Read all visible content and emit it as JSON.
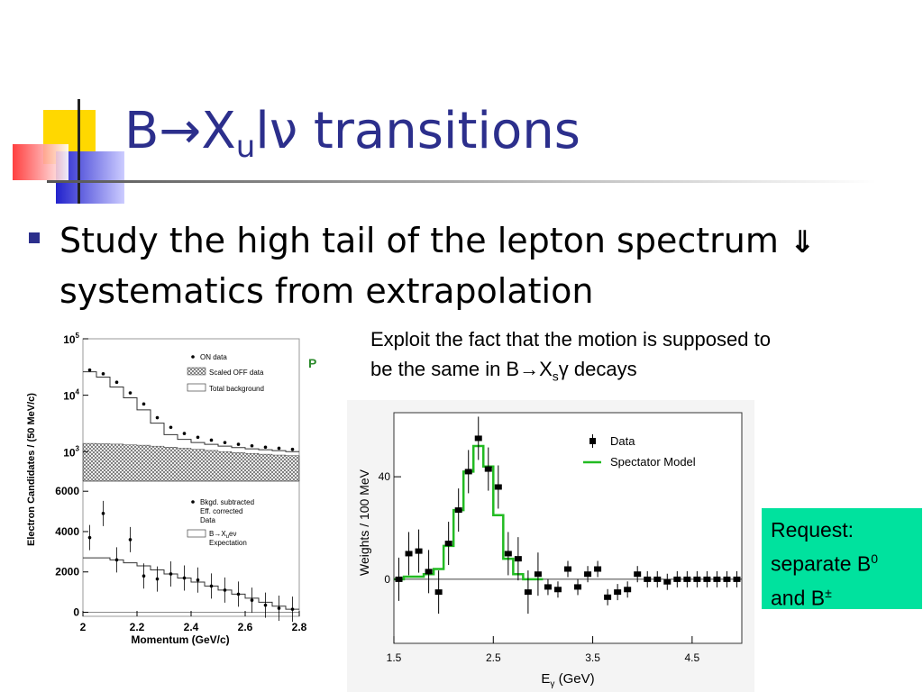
{
  "slide": {
    "title_prefix": "B",
    "title_arrow": "→",
    "title_x": "X",
    "title_sub": "u",
    "title_lnu": "lν",
    "title_suffix": " transitions",
    "bullet": {
      "line1": "Study the high tail of the lepton spectrum",
      "arrow": "⇓",
      "line2": "systematics from extrapolation"
    },
    "exploit": {
      "line1": "Exploit the fact that the motion is supposed to",
      "line2_prefix": "be the same in B",
      "arrow": "→",
      "x": "X",
      "sub": "s",
      "gamma": "γ",
      "suffix": " decays"
    },
    "request": {
      "line1": "Request:",
      "line2": "separate B",
      "sup0": "0",
      "line3_prefix": "and B",
      "sup_pm": "±"
    },
    "stray_letter": "P",
    "colors": {
      "title": "#2c2f8c",
      "request_bg": "#00e29e",
      "model_line": "#22bb22"
    }
  },
  "chart_data": [
    {
      "type": "line",
      "panel": "upper",
      "ylabel": "Electron Candidates / (50 MeV/c)",
      "yscale": "log",
      "yticks": [
        "10^3",
        "10^4",
        "10^5"
      ],
      "ylim": [
        300,
        100000
      ],
      "legend": [
        "ON data",
        "Scaled OFF data",
        "Total background"
      ],
      "x": [
        2.0,
        2.05,
        2.1,
        2.15,
        2.2,
        2.25,
        2.3,
        2.35,
        2.4,
        2.45,
        2.5,
        2.55,
        2.6,
        2.65,
        2.7,
        2.75
      ],
      "series": [
        {
          "name": "ON data",
          "values": [
            28000,
            24000,
            17000,
            11000,
            7000,
            4000,
            2700,
            2100,
            1800,
            1600,
            1450,
            1350,
            1270,
            1200,
            1150,
            1100
          ]
        },
        {
          "name": "Total background",
          "values": [
            26000,
            21000,
            14000,
            9000,
            5500,
            3200,
            2000,
            1650,
            1450,
            1350,
            1250,
            1180,
            1120,
            1080,
            1040,
            1000
          ]
        },
        {
          "name": "Scaled OFF data",
          "values": [
            1400,
            1380,
            1360,
            1320,
            1300,
            1250,
            1200,
            1150,
            1100,
            1050,
            1000,
            960,
            930,
            900,
            870,
            850
          ]
        }
      ]
    },
    {
      "type": "scatter",
      "panel": "lower",
      "xlabel": "Momentum (GeV/c)",
      "yticks": [
        0,
        2000,
        4000,
        6000
      ],
      "xticks": [
        2,
        2.2,
        2.4,
        2.6,
        2.8
      ],
      "ylim": [
        -200,
        6500
      ],
      "xlim": [
        2.0,
        2.8
      ],
      "legend": [
        "Bkgd. subtracted",
        "Eff. corrected",
        "Data",
        "B→X",
        "u",
        "eν",
        "Expectation"
      ],
      "x": [
        2.025,
        2.075,
        2.125,
        2.175,
        2.225,
        2.275,
        2.325,
        2.375,
        2.425,
        2.475,
        2.525,
        2.575,
        2.625,
        2.675,
        2.725,
        2.775
      ],
      "series": [
        {
          "name": "Data",
          "values": [
            3700,
            4900,
            2600,
            3600,
            1800,
            1650,
            1900,
            1700,
            1600,
            1300,
            1100,
            900,
            600,
            350,
            200,
            150
          ]
        },
        {
          "name": "Expectation",
          "values": [
            2700,
            2700,
            2600,
            2450,
            2300,
            2100,
            1900,
            1700,
            1500,
            1300,
            1100,
            900,
            700,
            500,
            300,
            150
          ]
        }
      ]
    },
    {
      "type": "scatter",
      "xlabel": "E",
      "xlabel_sub": "γ",
      "xlabel_unit": " (GeV)",
      "ylabel": "Weights / 100 MeV",
      "xticks": [
        "1.5",
        "2.5",
        "3.5",
        "4.5"
      ],
      "yticks": [
        "0",
        "40"
      ],
      "xlim": [
        1.5,
        5.0
      ],
      "ylim": [
        -25,
        65
      ],
      "legend": [
        "Data",
        "Spectator Model"
      ],
      "x": [
        1.55,
        1.65,
        1.75,
        1.85,
        1.95,
        2.05,
        2.15,
        2.25,
        2.35,
        2.45,
        2.55,
        2.65,
        2.75,
        2.85,
        2.95,
        3.05,
        3.15,
        3.25,
        3.35,
        3.45,
        3.55,
        3.65,
        3.75,
        3.85,
        3.95,
        4.05,
        4.15,
        4.25,
        4.35,
        4.45,
        4.55,
        4.65,
        4.75,
        4.85,
        4.95
      ],
      "series": [
        {
          "name": "Data",
          "values": [
            0,
            10,
            11,
            3,
            -5,
            14,
            27,
            42,
            55,
            43,
            36,
            10,
            8,
            -5,
            2,
            -3,
            -4,
            4,
            -3,
            2,
            4,
            -7,
            -5,
            -4,
            2,
            0,
            0,
            -1,
            0,
            0,
            0,
            0,
            0,
            0,
            0
          ]
        },
        {
          "name": "Spectator Model",
          "values": [
            0,
            1,
            1,
            2,
            4,
            13,
            27,
            42,
            52,
            44,
            25,
            8,
            2,
            0,
            0,
            0,
            0,
            0,
            0,
            0,
            0,
            0,
            0,
            0,
            0,
            0,
            0,
            0,
            0,
            0,
            0,
            0,
            0,
            0,
            0
          ]
        }
      ]
    }
  ]
}
